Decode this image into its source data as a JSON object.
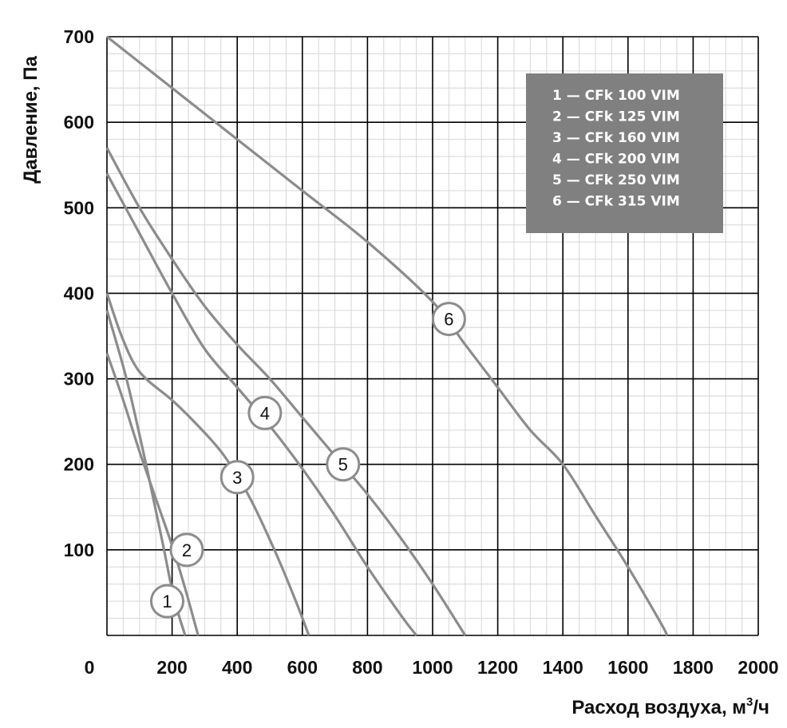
{
  "chart_data": {
    "type": "line",
    "xlabel": "Расход воздуха, м",
    "xlabel_sup": "3",
    "xlabel_suffix": "/ч",
    "ylabel": "Давление, Па",
    "xlim": [
      0,
      2000
    ],
    "ylim": [
      0,
      700
    ],
    "x_ticks": [
      "0",
      "200",
      "400",
      "600",
      "800",
      "1000",
      "1200",
      "1400",
      "1600",
      "1800",
      "2000"
    ],
    "y_ticks": [
      "100",
      "200",
      "300",
      "400",
      "500",
      "600",
      "700"
    ],
    "grid": true,
    "legend_position": "top-right",
    "colors": {
      "curve": "#8c8c8c",
      "grid_major": "#000000",
      "grid_minor": "#d6d6d6",
      "legend_bg": "#808080",
      "marker_fill": "#ffffff"
    },
    "series": [
      {
        "name": "1 — CFk 100 VIM",
        "marker": "1",
        "label_at": [
          185,
          40
        ],
        "x": [
          0,
          60,
          120,
          170,
          205,
          240
        ],
        "y": [
          380,
          300,
          200,
          110,
          45,
          0
        ]
      },
      {
        "name": "2 — CFk 125 VIM",
        "marker": "2",
        "label_at": [
          245,
          100
        ],
        "x": [
          0,
          50,
          100,
          150,
          200,
          240,
          280
        ],
        "y": [
          330,
          275,
          215,
          160,
          105,
          55,
          0
        ]
      },
      {
        "name": "3 — CFk 160 VIM",
        "marker": "3",
        "label_at": [
          400,
          185
        ],
        "x": [
          0,
          40,
          80,
          120,
          200,
          280,
          360,
          440,
          520,
          580,
          620
        ],
        "y": [
          400,
          355,
          320,
          300,
          275,
          245,
          210,
          160,
          95,
          40,
          0
        ]
      },
      {
        "name": "4 — CFk 200 VIM",
        "marker": "4",
        "label_at": [
          485,
          260
        ],
        "x": [
          0,
          100,
          200,
          300,
          400,
          500,
          600,
          700,
          800,
          900,
          950
        ],
        "y": [
          540,
          470,
          400,
          335,
          290,
          245,
          195,
          140,
          80,
          25,
          0
        ]
      },
      {
        "name": "5 — CFk 250 VIM",
        "marker": "5",
        "label_at": [
          725,
          200
        ],
        "x": [
          0,
          100,
          200,
          300,
          400,
          500,
          600,
          700,
          800,
          900,
          1000,
          1100
        ],
        "y": [
          570,
          500,
          440,
          385,
          340,
          300,
          255,
          210,
          165,
          115,
          60,
          0
        ]
      },
      {
        "name": "6 — CFk 315 VIM",
        "marker": "6",
        "label_at": [
          1050,
          370
        ],
        "x": [
          0,
          200,
          400,
          600,
          800,
          1000,
          1100,
          1200,
          1300,
          1400,
          1500,
          1600,
          1700,
          1720
        ],
        "y": [
          700,
          640,
          580,
          520,
          460,
          390,
          340,
          290,
          240,
          200,
          140,
          80,
          15,
          0
        ]
      }
    ]
  }
}
